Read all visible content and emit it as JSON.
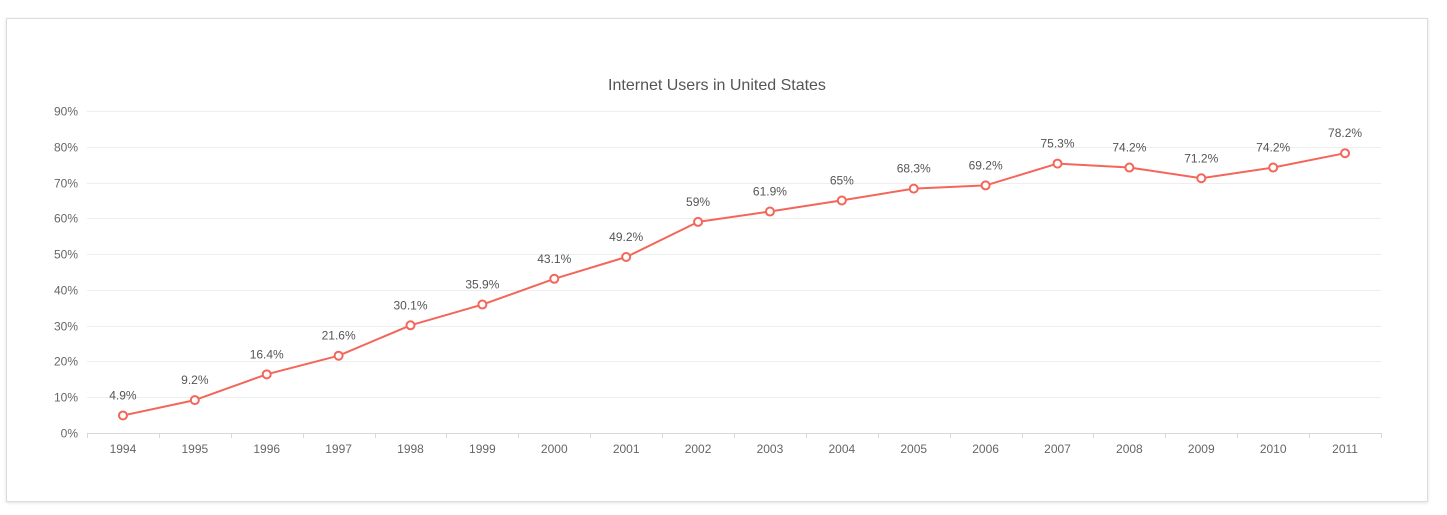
{
  "chart_data": {
    "type": "line",
    "title": "Internet Users in United States",
    "xlabel": "",
    "ylabel": "",
    "categories": [
      "1994",
      "1995",
      "1996",
      "1997",
      "1998",
      "1999",
      "2000",
      "2001",
      "2002",
      "2003",
      "2004",
      "2005",
      "2006",
      "2007",
      "2008",
      "2009",
      "2010",
      "2011"
    ],
    "series": [
      {
        "values": [
          4.9,
          9.2,
          16.4,
          21.6,
          30.1,
          35.9,
          43.1,
          49.2,
          59,
          61.9,
          65,
          68.3,
          69.2,
          75.3,
          74.2,
          71.2,
          74.2,
          78.2
        ],
        "labels": [
          "4.9%",
          "9.2%",
          "16.4%",
          "21.6%",
          "30.1%",
          "35.9%",
          "43.1%",
          "49.2%",
          "59%",
          "61.9%",
          "65%",
          "68.3%",
          "69.2%",
          "75.3%",
          "74.2%",
          "71.2%",
          "74.2%",
          "78.2%"
        ],
        "color": "#f4665a"
      }
    ],
    "ylim": [
      0,
      90
    ],
    "yticks": [
      "0%",
      "10%",
      "20%",
      "30%",
      "40%",
      "50%",
      "60%",
      "70%",
      "80%",
      "90%"
    ],
    "grid": true,
    "legend": "none"
  },
  "colors": {
    "line": "#f4665a",
    "grid": "#eeeeee",
    "text": "#666666"
  }
}
